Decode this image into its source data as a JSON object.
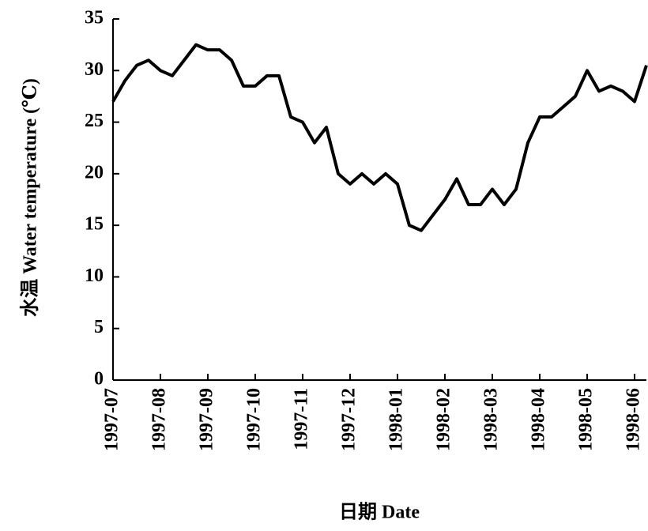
{
  "chart_data": {
    "type": "line",
    "y_label": "水温 Water temperature (℃)",
    "x_label": "日期 Date",
    "categories": [
      "1997-07",
      null,
      null,
      null,
      "1997-08",
      null,
      null,
      null,
      "1997-09",
      null,
      null,
      null,
      "1997-10",
      null,
      null,
      null,
      "1997-11",
      null,
      null,
      null,
      "1997-12",
      null,
      null,
      null,
      "1998-01",
      null,
      null,
      null,
      "1998-02",
      null,
      null,
      null,
      "1998-03",
      null,
      null,
      null,
      "1998-04",
      null,
      null,
      null,
      "1998-05",
      null,
      null,
      null,
      "1998-06",
      null
    ],
    "series": [
      {
        "color": "#000000",
        "values": [
          27,
          29,
          30.5,
          31,
          30,
          29.5,
          31,
          32.5,
          32,
          32,
          31,
          28.5,
          28.5,
          29.5,
          29.5,
          25.5,
          25,
          23,
          24.5,
          20,
          19,
          20,
          19,
          20,
          19,
          15,
          14.5,
          16,
          17.5,
          19.5,
          17,
          17,
          18.5,
          17,
          18.5,
          23,
          25.5,
          25.5,
          26.5,
          27.5,
          30,
          28,
          28.5,
          28,
          27,
          30.5
        ]
      }
    ],
    "ylim": [
      0,
      35
    ],
    "yticks": [
      0,
      5,
      10,
      15,
      20,
      25,
      30,
      35
    ]
  }
}
